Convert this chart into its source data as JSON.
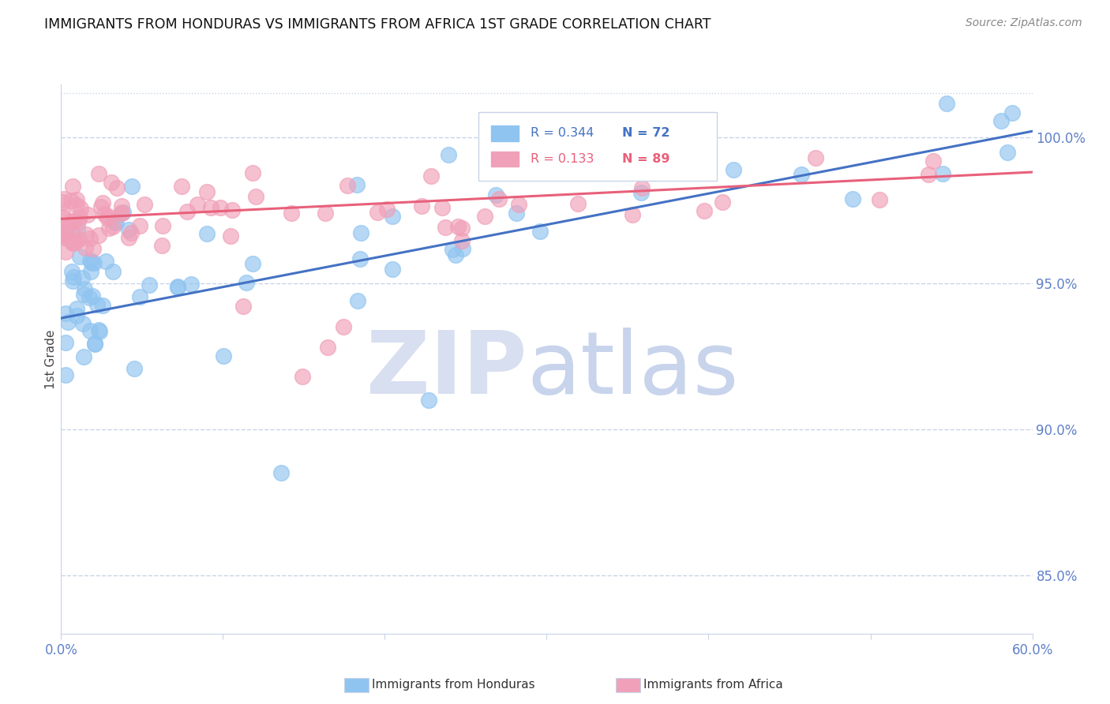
{
  "title": "IMMIGRANTS FROM HONDURAS VS IMMIGRANTS FROM AFRICA 1ST GRADE CORRELATION CHART",
  "source": "Source: ZipAtlas.com",
  "ylabel": "1st Grade",
  "ylabel_right_values": [
    100.0,
    95.0,
    90.0,
    85.0
  ],
  "xmin": 0.0,
  "xmax": 60.0,
  "ymin": 83.0,
  "ymax": 101.8,
  "legend1_label_r": "R = 0.344",
  "legend1_label_n": "N = 72",
  "legend2_label_r": "R = 0.133",
  "legend2_label_n": "N = 89",
  "legend_series1": "Immigrants from Honduras",
  "legend_series2": "Immigrants from Africa",
  "color_honduras": "#90C4F0",
  "color_africa": "#F0A0B8",
  "trendline_color_honduras": "#4472C4",
  "trendline_color_africa": "#E8607A",
  "background_color": "#FFFFFF",
  "watermark_zip_color": "#D8DFF0",
  "watermark_atlas_color": "#C8D4EC",
  "tick_color": "#6080C8",
  "title_color": "#111111",
  "grid_color": "#C8D4E8",
  "trendline_h_x0": 0.0,
  "trendline_h_y0": 93.8,
  "trendline_h_x1": 60.0,
  "trendline_h_y1": 100.2,
  "trendline_a_x0": 0.0,
  "trendline_a_y0": 97.2,
  "trendline_a_x1": 60.0,
  "trendline_a_y1": 98.8
}
